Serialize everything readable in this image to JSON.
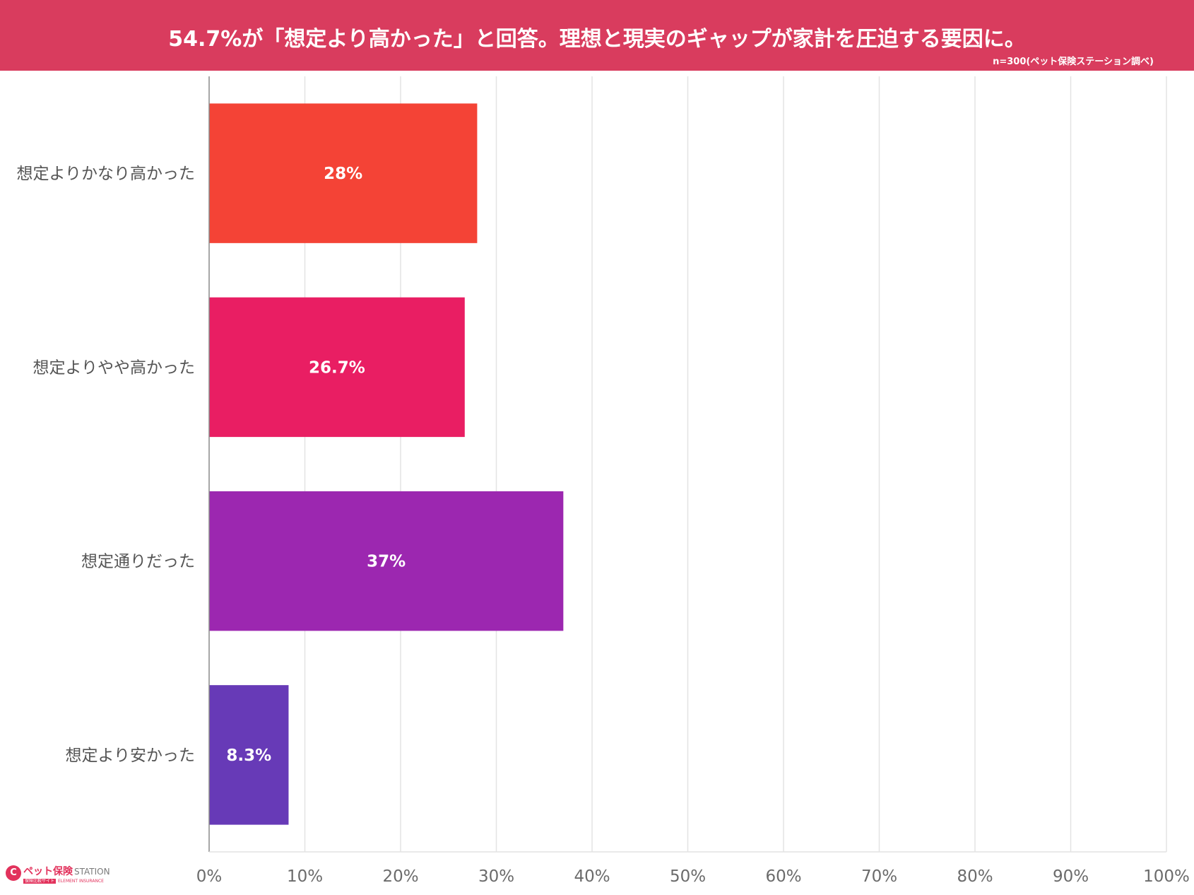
{
  "header": {
    "title": "54.7%が「想定より高かった」と回答。理想と現実のギャップが家計を圧迫する要因に。",
    "note": "n=300(ペット保険ステーション調べ)"
  },
  "logo": {
    "icon_name": "heart-c-logo-icon",
    "brand": "ペット保険",
    "brand_sub": "STATION",
    "tag_box": "保険比較サイト",
    "tag_text": "ELEMENT INSURANCE"
  },
  "colors": {
    "header": "#d93c5e",
    "grid": "#e3e3e3",
    "axis": "#8a8a8a"
  },
  "chart_data": {
    "type": "bar",
    "orientation": "horizontal",
    "title": "",
    "xlabel": "",
    "ylabel": "",
    "xlim": [
      0,
      100
    ],
    "ticks": [
      0,
      10,
      20,
      30,
      40,
      50,
      60,
      70,
      80,
      90,
      100
    ],
    "tick_suffix": "%",
    "grid": true,
    "legend": "none",
    "categories": [
      "想定よりかなり高かった",
      "想定よりやや高かった",
      "想定通りだった",
      "想定より安かった"
    ],
    "values": [
      28,
      26.7,
      37,
      8.3
    ],
    "value_labels": [
      "28%",
      "26.7%",
      "37%",
      "8.3%"
    ],
    "bar_colors": [
      "#f44336",
      "#e91e63",
      "#9c27b0",
      "#673ab7"
    ]
  }
}
